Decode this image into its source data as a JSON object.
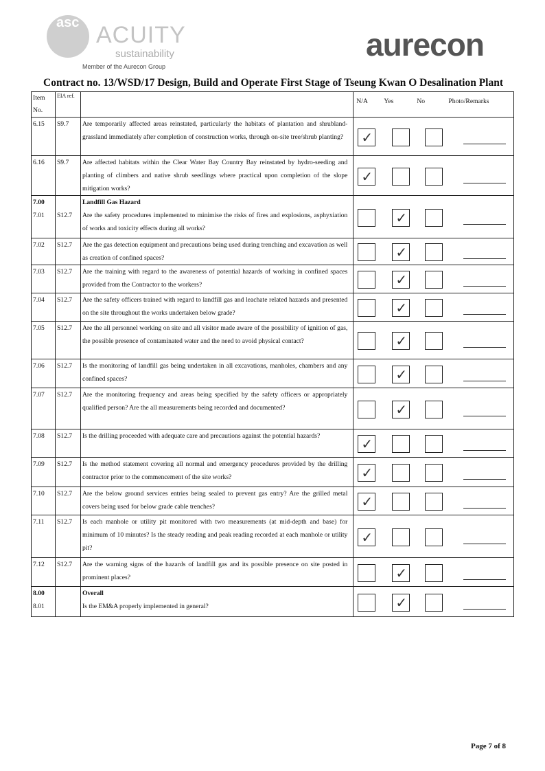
{
  "header": {
    "left_logo_text": "ACUITY",
    "left_logo_sub": "sustainability",
    "left_logo_letters": "asc",
    "member_text": "Member of the Aurecon Group",
    "right_logo": "aurecon"
  },
  "title": "Contract no.  13/WSD/17 Design, Build and Operate First Stage of Tseung Kwan O Desalination Plant",
  "columns": {
    "item": "Item No.",
    "eia": "EIA ref.",
    "na": "N/A",
    "yes": "Yes",
    "no": "No",
    "remarks": "Photo/Remarks"
  },
  "rows": [
    {
      "item": "6.15",
      "eia": "S9.7",
      "text": "Are temporarily affected areas reinstated, particularly the habitats of plantation and shrubland-grassland immediately after completion of construction works, through on-site tree/shrub planting?",
      "checked": "N/A"
    },
    {
      "item": "6.16",
      "eia": "S9.7",
      "text": "Are affected habitats within the Clear Water Bay Country Bay reinstated by hydro-seeding and planting of climbers and native shrub seedlings where practical upon completion of the slope mitigation works?",
      "checked": "N/A"
    },
    {
      "section_item": "7.00",
      "section": "Landfill Gas Hazard",
      "item": "7.01",
      "eia": "S12.7",
      "text": "Are the safety procedures implemented to minimise the risks of fires and explosions, asphyxiation of works and toxicity effects during all works?",
      "checked": "Yes"
    },
    {
      "item": "7.02",
      "eia": "S12.7",
      "text": "Are the gas detection equipment and precautions being used during trenching and excavation as well as creation of confined spaces?",
      "checked": "Yes"
    },
    {
      "item": "7.03",
      "eia": "S12.7",
      "text": "Are the training with regard to the awareness of potential hazards of working in confined spaces provided from the Contractor to the workers?",
      "checked": "Yes"
    },
    {
      "item": "7.04",
      "eia": "S12.7",
      "text": "Are the safety officers trained with regard to landfill gas and leachate related hazards and presented on the site throughout the works undertaken below grade?",
      "checked": "Yes"
    },
    {
      "item": "7.05",
      "eia": "S12.7",
      "text": "Are the all personnel working on site and all visitor made aware of the possibility of ignition of gas, the possible presence of contaminated water and the need to avoid physical contact?",
      "checked": "Yes"
    },
    {
      "item": "7.06",
      "eia": "S12.7",
      "text": "Is the monitoring of landfill gas being undertaken in all excavations, manholes, chambers and any confined spaces?",
      "checked": "Yes"
    },
    {
      "item": "7.07",
      "eia": "S12.7",
      "text": "Are the monitoring frequency and areas being specified by the safety officers or appropriately qualified person? Are the all measurements being recorded and documented?",
      "checked": "Yes"
    },
    {
      "item": "7.08",
      "eia": "S12.7",
      "text": "Is the drilling proceeded with adequate care and precautions against the potential hazards?",
      "checked": "N/A"
    },
    {
      "item": "7.09",
      "eia": "S12.7",
      "text": "Is the method statement covering all normal and emergency procedures provided by the drilling contractor prior to the commencement of the site works?",
      "checked": "N/A"
    },
    {
      "item": "7.10",
      "eia": "S12.7",
      "text": "Are the below ground services entries being sealed to prevent gas entry? Are the grilled metal covers being used for below grade cable trenches?",
      "checked": "N/A"
    },
    {
      "item": "7.11",
      "eia": "S12.7",
      "text": "Is each manhole or utility pit monitored with two measurements (at mid-depth and base) for minimum of 10 minutes? Is the steady reading and peak reading recorded at each manhole or utility pit?",
      "checked": "N/A"
    },
    {
      "item": "7.12",
      "eia": "S12.7",
      "text": "Are the warning signs of the hazards of landfill gas and its possible presence on site posted in prominent places?",
      "checked": "Yes"
    },
    {
      "section_item": "8.00",
      "section": "Overall",
      "item": "8.01",
      "eia": "",
      "text": "Is the EM&A properly implemented in general?",
      "checked": "Yes"
    }
  ],
  "tick_symbol": "✓",
  "footer": "Page 7 of 8"
}
